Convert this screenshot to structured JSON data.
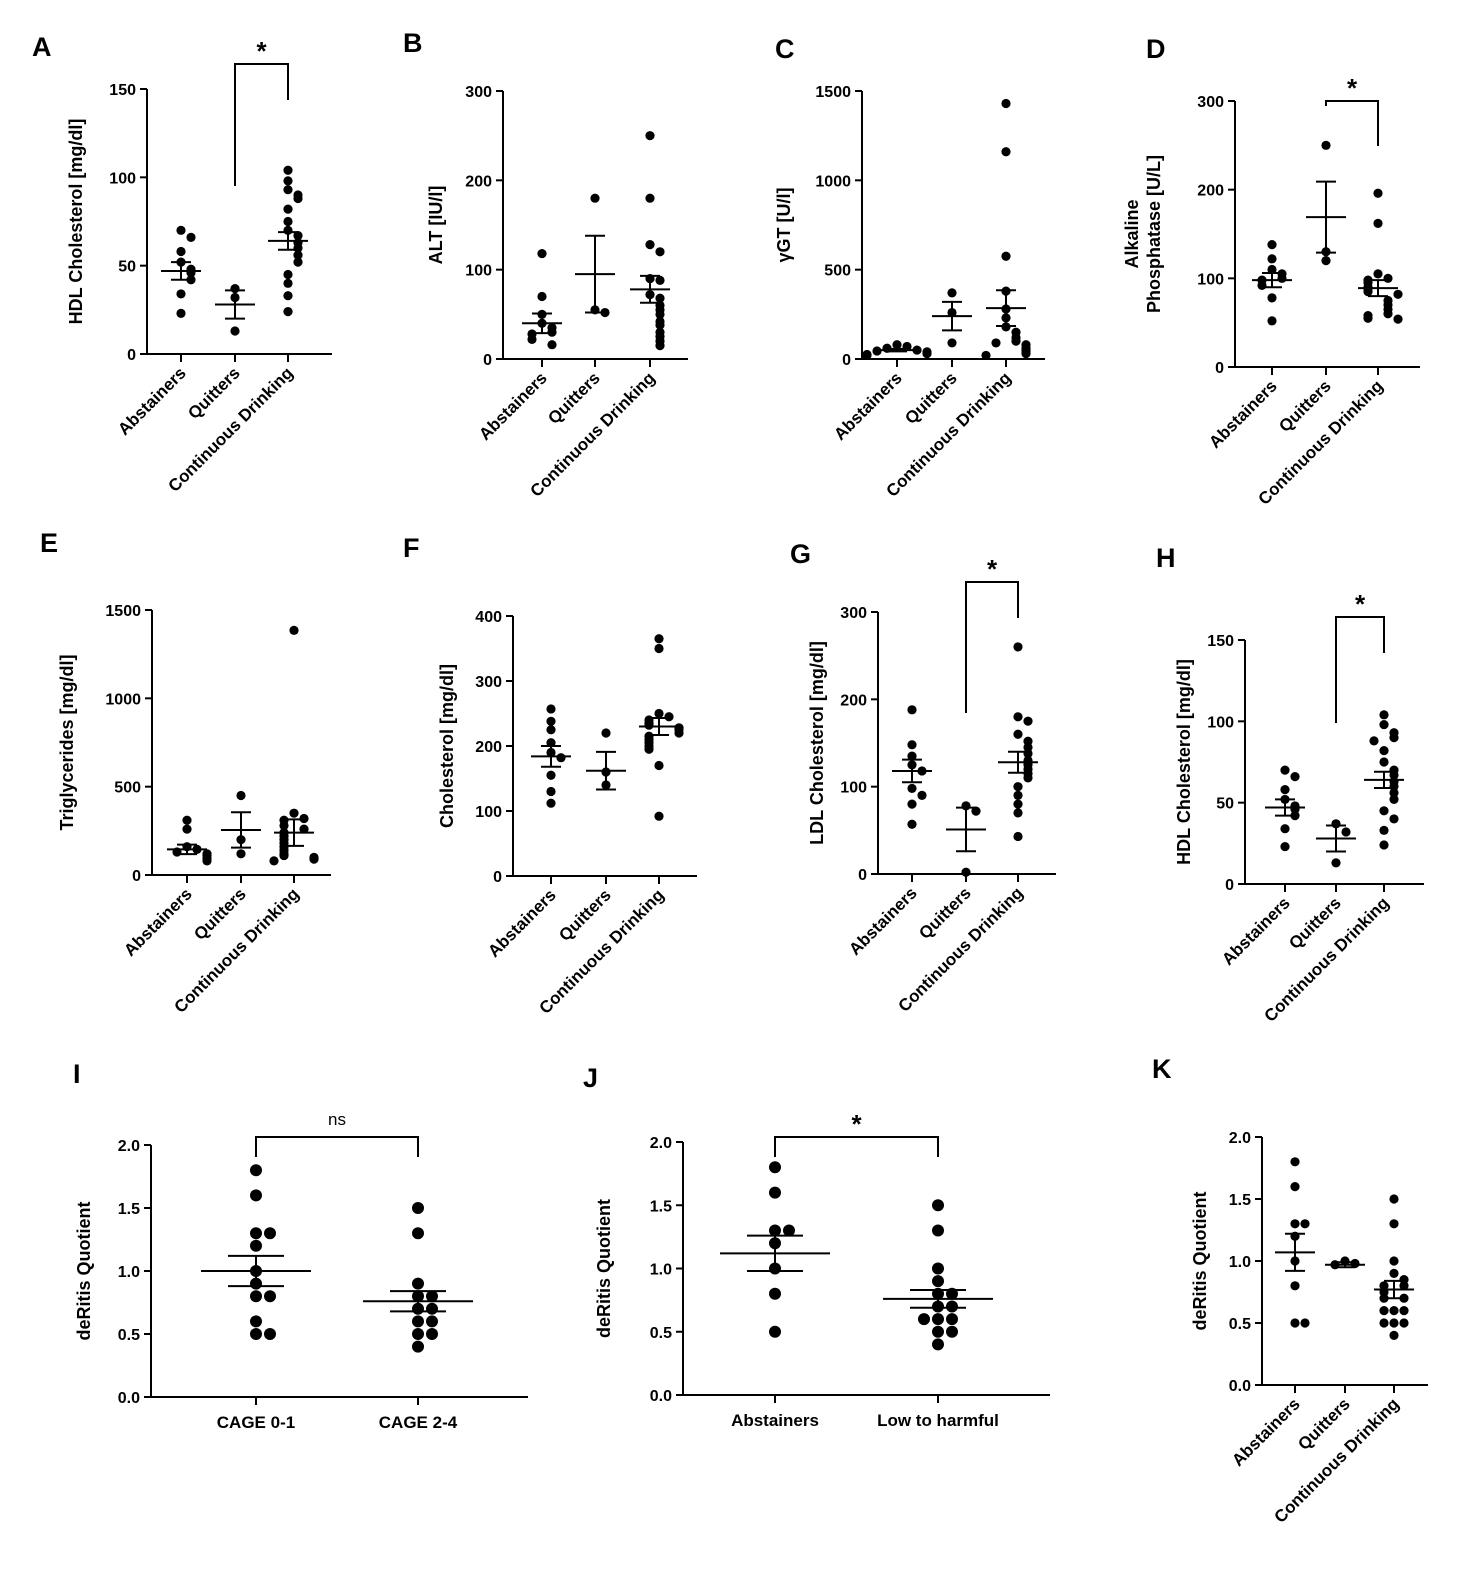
{
  "chart_data": [
    {
      "panel": "A",
      "type": "scatter",
      "ylabel": "HDL Cholesterol [mg/dl]",
      "yticks": [
        0,
        50,
        100,
        150
      ],
      "ylim": [
        0,
        150
      ],
      "categories": [
        "Abstainers",
        "Quitters",
        "Continuous Drinking"
      ],
      "series": [
        {
          "name": "Abstainers",
          "values": [
            70,
            66,
            58,
            52,
            48,
            46,
            42,
            34,
            23
          ],
          "mean": 47,
          "sem": 5
        },
        {
          "name": "Quitters",
          "values": [
            37,
            32,
            13
          ],
          "mean": 28,
          "sem": 8
        },
        {
          "name": "Continuous Drinking",
          "values": [
            104,
            98,
            93,
            90,
            88,
            82,
            75,
            70,
            67,
            63,
            60,
            56,
            52,
            45,
            40,
            33,
            24
          ],
          "mean": 64,
          "sem": 5
        }
      ],
      "significance": [
        {
          "from": "Quitters",
          "to": "Continuous Drinking",
          "label": "*"
        }
      ]
    },
    {
      "panel": "B",
      "type": "scatter",
      "ylabel": "ALT [IU/l]",
      "yticks": [
        0,
        100,
        200,
        300
      ],
      "ylim": [
        0,
        300
      ],
      "categories": [
        "Abstainers",
        "Quitters",
        "Continuous Drinking"
      ],
      "series": [
        {
          "name": "Abstainers",
          "values": [
            118,
            70,
            50,
            40,
            35,
            30,
            28,
            22,
            16
          ],
          "mean": 40,
          "sem": 11
        },
        {
          "name": "Quitters",
          "values": [
            180,
            55,
            52
          ],
          "mean": 95,
          "sem": 43
        },
        {
          "name": "Continuous Drinking",
          "values": [
            250,
            180,
            128,
            120,
            90,
            88,
            72,
            68,
            60,
            55,
            50,
            42,
            38,
            30,
            25,
            20,
            15
          ],
          "mean": 78,
          "sem": 15
        }
      ],
      "significance": []
    },
    {
      "panel": "C",
      "type": "scatter",
      "ylabel": "γGT [U/l]",
      "yticks": [
        0,
        500,
        1000,
        1500
      ],
      "ylim": [
        0,
        1500
      ],
      "categories": [
        "Abstainers",
        "Quitters",
        "Continuous Drinking"
      ],
      "series": [
        {
          "name": "Abstainers",
          "values": [
            80,
            70,
            60,
            50,
            45,
            40,
            30,
            25,
            20
          ],
          "mean": 50,
          "sem": 7
        },
        {
          "name": "Quitters",
          "values": [
            370,
            260,
            90
          ],
          "mean": 240,
          "sem": 80
        },
        {
          "name": "Continuous Drinking",
          "values": [
            1430,
            1160,
            575,
            380,
            280,
            230,
            180,
            150,
            120,
            100,
            90,
            80,
            60,
            50,
            40,
            30,
            20
          ],
          "mean": 285,
          "sem": 100
        }
      ],
      "significance": []
    },
    {
      "panel": "D",
      "type": "scatter",
      "ylabel": "Alkaline Phosphatase  [U/L]",
      "yticks": [
        0,
        100,
        200,
        300
      ],
      "ylim": [
        0,
        300
      ],
      "categories": [
        "Abstainers",
        "Quitters",
        "Continuous Drinking"
      ],
      "series": [
        {
          "name": "Abstainers",
          "values": [
            138,
            122,
            110,
            105,
            100,
            98,
            92,
            78,
            52
          ],
          "mean": 98,
          "sem": 8
        },
        {
          "name": "Quitters",
          "values": [
            250,
            130,
            120
          ],
          "mean": 169,
          "sem": 40
        },
        {
          "name": "Continuous Drinking",
          "values": [
            196,
            162,
            105,
            100,
            98,
            95,
            90,
            88,
            85,
            82,
            75,
            70,
            65,
            60,
            58,
            55,
            54
          ],
          "mean": 89,
          "sem": 9
        }
      ],
      "significance": [
        {
          "from": "Quitters",
          "to": "Continuous Drinking",
          "label": "*"
        }
      ]
    },
    {
      "panel": "E",
      "type": "scatter",
      "ylabel": "Triglycerides [mg/dl]",
      "yticks": [
        0,
        500,
        1000,
        1500
      ],
      "ylim": [
        0,
        1500
      ],
      "categories": [
        "Abstainers",
        "Quitters",
        "Continuous Drinking"
      ],
      "series": [
        {
          "name": "Abstainers",
          "values": [
            310,
            260,
            160,
            145,
            130,
            120,
            110,
            95,
            80
          ],
          "mean": 145,
          "sem": 27
        },
        {
          "name": "Quitters",
          "values": [
            450,
            200,
            120
          ],
          "mean": 255,
          "sem": 100
        },
        {
          "name": "Continuous Drinking",
          "values": [
            1385,
            350,
            320,
            310,
            280,
            260,
            240,
            220,
            200,
            180,
            160,
            140,
            120,
            110,
            100,
            90,
            80
          ],
          "mean": 240,
          "sem": 75
        }
      ],
      "significance": []
    },
    {
      "panel": "F",
      "type": "scatter",
      "ylabel": "Cholesterol [mg/dl]",
      "yticks": [
        0,
        100,
        200,
        300,
        400
      ],
      "ylim": [
        0,
        400
      ],
      "categories": [
        "Abstainers",
        "Quitters",
        "Continuous Drinking"
      ],
      "series": [
        {
          "name": "Abstainers",
          "values": [
            257,
            238,
            225,
            205,
            190,
            182,
            155,
            130,
            112
          ],
          "mean": 184,
          "sem": 16
        },
        {
          "name": "Quitters",
          "values": [
            220,
            160,
            140
          ],
          "mean": 162,
          "sem": 29
        },
        {
          "name": "Continuous Drinking",
          "values": [
            365,
            350,
            250,
            245,
            240,
            235,
            232,
            228,
            225,
            220,
            215,
            210,
            205,
            200,
            195,
            170,
            92
          ],
          "mean": 230,
          "sem": 13
        }
      ],
      "significance": []
    },
    {
      "panel": "G",
      "type": "scatter",
      "ylabel": "LDL Cholesterol [mg/dl]",
      "yticks": [
        0,
        100,
        200,
        300
      ],
      "ylim": [
        0,
        300
      ],
      "categories": [
        "Abstainers",
        "Quitters",
        "Continuous Drinking"
      ],
      "series": [
        {
          "name": "Abstainers",
          "values": [
            188,
            148,
            135,
            125,
            118,
            98,
            90,
            80,
            57
          ],
          "mean": 118,
          "sem": 13
        },
        {
          "name": "Quitters",
          "values": [
            78,
            72,
            2
          ],
          "mean": 51,
          "sem": 25
        },
        {
          "name": "Continuous Drinking",
          "values": [
            260,
            180,
            175,
            160,
            152,
            145,
            138,
            130,
            125,
            120,
            115,
            110,
            100,
            90,
            80,
            70,
            43
          ],
          "mean": 128,
          "sem": 12
        }
      ],
      "significance": [
        {
          "from": "Quitters",
          "to": "Continuous Drinking",
          "label": "*"
        }
      ]
    },
    {
      "panel": "H",
      "type": "scatter",
      "ylabel": "HDL Cholesterol [mg/dl]",
      "yticks": [
        0,
        50,
        100,
        150
      ],
      "ylim": [
        0,
        150
      ],
      "categories": [
        "Abstainers",
        "Quitters",
        "Continuous Drinking"
      ],
      "series": [
        {
          "name": "Abstainers",
          "values": [
            70,
            66,
            58,
            52,
            48,
            46,
            42,
            34,
            23
          ],
          "mean": 47,
          "sem": 5
        },
        {
          "name": "Quitters",
          "values": [
            37,
            32,
            13
          ],
          "mean": 28,
          "sem": 8
        },
        {
          "name": "Continuous Drinking",
          "values": [
            104,
            98,
            93,
            90,
            88,
            82,
            75,
            70,
            67,
            63,
            60,
            56,
            52,
            45,
            40,
            33,
            24
          ],
          "mean": 64,
          "sem": 5
        }
      ],
      "significance": [
        {
          "from": "Quitters",
          "to": "Continuous Drinking",
          "label": "*"
        }
      ]
    },
    {
      "panel": "I",
      "type": "scatter",
      "ylabel": "deRitis Quotient",
      "yticks": [
        "0.0",
        "0.5",
        "1.0",
        "1.5",
        "2.0"
      ],
      "ylim": [
        0,
        2
      ],
      "categories": [
        "CAGE 0-1",
        "CAGE 2-4"
      ],
      "series": [
        {
          "name": "CAGE 0-1",
          "values": [
            1.8,
            1.6,
            1.3,
            1.3,
            1.2,
            1.0,
            0.9,
            0.8,
            0.8,
            0.6,
            0.5,
            0.5
          ],
          "mean": 1.0,
          "sem": 0.12
        },
        {
          "name": "CAGE 2-4",
          "values": [
            1.5,
            1.3,
            0.9,
            0.8,
            0.8,
            0.7,
            0.7,
            0.6,
            0.6,
            0.5,
            0.5,
            0.4
          ],
          "mean": 0.76,
          "sem": 0.08
        }
      ],
      "significance": [
        {
          "from": "CAGE 0-1",
          "to": "CAGE 2-4",
          "label": "ns"
        }
      ]
    },
    {
      "panel": "J",
      "type": "scatter",
      "ylabel": "deRitis Quotient",
      "yticks": [
        "0.0",
        "0.5",
        "1.0",
        "1.5",
        "2.0"
      ],
      "ylim": [
        0,
        2
      ],
      "categories": [
        "Abstainers",
        "Low to harmful"
      ],
      "series": [
        {
          "name": "Abstainers",
          "values": [
            1.8,
            1.6,
            1.3,
            1.3,
            1.2,
            1.0,
            0.8,
            0.5
          ],
          "mean": 1.12,
          "sem": 0.14
        },
        {
          "name": "Low to harmful",
          "values": [
            1.5,
            1.3,
            1.0,
            0.9,
            0.8,
            0.8,
            0.7,
            0.7,
            0.6,
            0.6,
            0.6,
            0.5,
            0.5,
            0.4
          ],
          "mean": 0.76,
          "sem": 0.07
        }
      ],
      "significance": [
        {
          "from": "Abstainers",
          "to": "Low to harmful",
          "label": "*"
        }
      ]
    },
    {
      "panel": "K",
      "type": "scatter",
      "ylabel": "deRitis Quotient",
      "yticks": [
        "0.0",
        "0.5",
        "1.0",
        "1.5",
        "2.0"
      ],
      "ylim": [
        0,
        2
      ],
      "categories": [
        "Abstainers",
        "Quitters",
        "Continuous Drinking"
      ],
      "series": [
        {
          "name": "Abstainers",
          "values": [
            1.8,
            1.6,
            1.3,
            1.3,
            1.2,
            1.0,
            0.8,
            0.5,
            0.5
          ],
          "mean": 1.07,
          "sem": 0.15
        },
        {
          "name": "Quitters",
          "values": [
            1.0,
            0.98,
            0.97
          ],
          "mean": 0.97,
          "sem": 0.02
        },
        {
          "name": "Continuous Drinking",
          "values": [
            1.5,
            1.3,
            1.0,
            0.9,
            0.85,
            0.8,
            0.8,
            0.75,
            0.7,
            0.7,
            0.6,
            0.6,
            0.6,
            0.5,
            0.5,
            0.5,
            0.4
          ],
          "mean": 0.77,
          "sem": 0.07
        }
      ],
      "significance": []
    }
  ]
}
